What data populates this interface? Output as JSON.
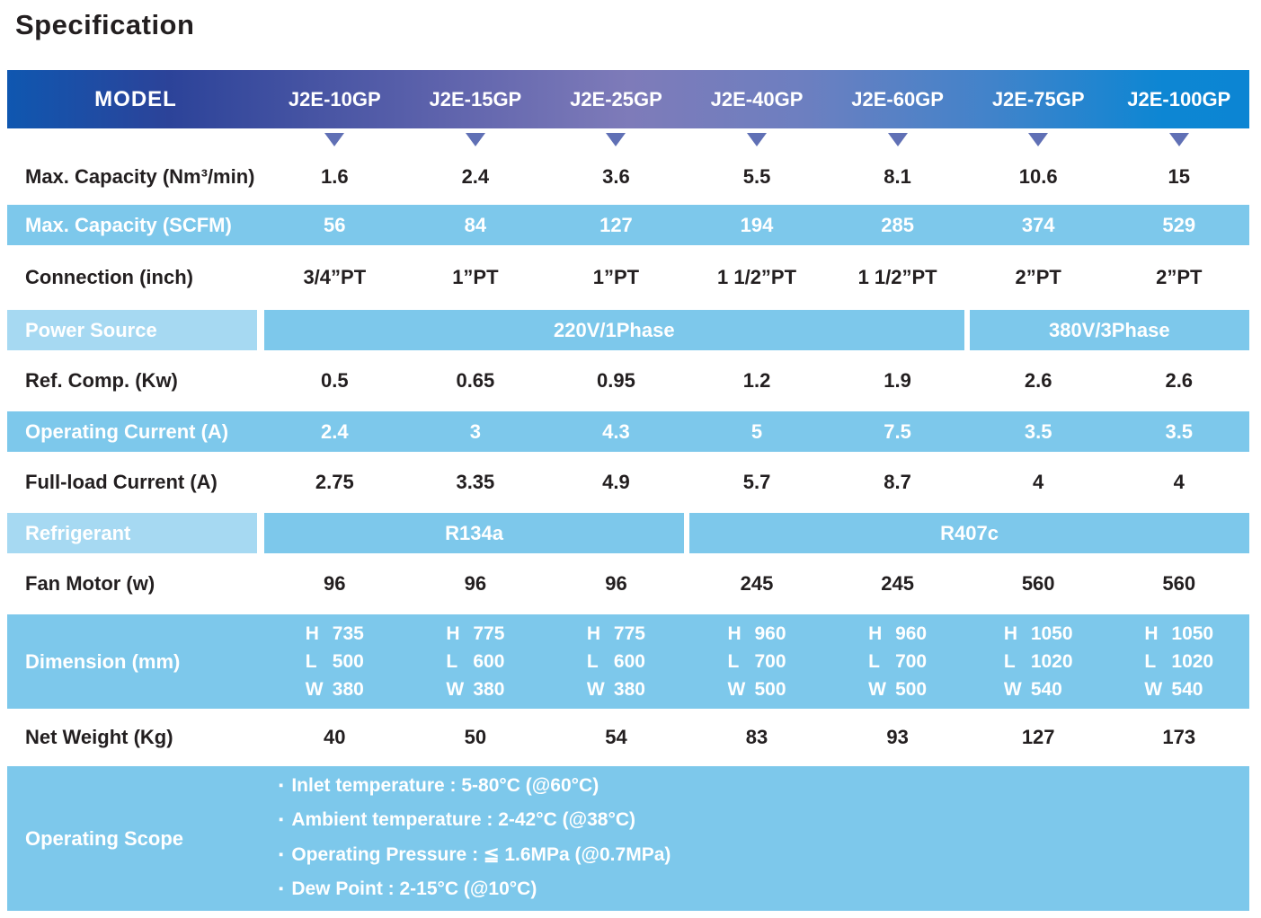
{
  "title": "Specification",
  "colors": {
    "header_gradient_left": "#0f57b0",
    "header_gradient_mid": "#7e7bb9",
    "header_gradient_right": "#0c85d3",
    "band_blue": "#7dc8eb",
    "label_light_blue": "#a6d9f2",
    "triangle_marker": "#6070b5",
    "text_dark": "#231f20",
    "text_white": "#ffffff"
  },
  "header": {
    "model_label": "MODEL",
    "models": [
      "J2E-10GP",
      "J2E-15GP",
      "J2E-25GP",
      "J2E-40GP",
      "J2E-60GP",
      "J2E-75GP",
      "J2E-100GP"
    ]
  },
  "rows": {
    "max_capacity_nm": {
      "label": "Max. Capacity (Nm³/min)",
      "values": [
        "1.6",
        "2.4",
        "3.6",
        "5.5",
        "8.1",
        "10.6",
        "15"
      ]
    },
    "max_capacity_scfm": {
      "label": "Max. Capacity (SCFM)",
      "values": [
        "56",
        "84",
        "127",
        "194",
        "285",
        "374",
        "529"
      ]
    },
    "connection": {
      "label": "Connection (inch)",
      "values": [
        "3/4”PT",
        "1”PT",
        "1”PT",
        "1 1/2”PT",
        "1 1/2”PT",
        "2”PT",
        "2”PT"
      ]
    },
    "power_source": {
      "label": "Power Source",
      "spans": [
        {
          "text": "220V/1Phase",
          "cols": 5
        },
        {
          "text": "380V/3Phase",
          "cols": 2
        }
      ]
    },
    "ref_comp": {
      "label": "Ref. Comp. (Kw)",
      "values": [
        "0.5",
        "0.65",
        "0.95",
        "1.2",
        "1.9",
        "2.6",
        "2.6"
      ]
    },
    "operating_current": {
      "label": "Operating Current (A)",
      "values": [
        "2.4",
        "3",
        "4.3",
        "5",
        "7.5",
        "3.5",
        "3.5"
      ]
    },
    "full_load_current": {
      "label": "Full-load Current (A)",
      "values": [
        "2.75",
        "3.35",
        "4.9",
        "5.7",
        "8.7",
        "4",
        "4"
      ]
    },
    "refrigerant": {
      "label": "Refrigerant",
      "spans": [
        {
          "text": "R134a",
          "cols": 3
        },
        {
          "text": "R407c",
          "cols": 4
        }
      ]
    },
    "fan_motor": {
      "label": "Fan Motor (w)",
      "values": [
        "96",
        "96",
        "96",
        "245",
        "245",
        "560",
        "560"
      ]
    },
    "dimension": {
      "label": "Dimension (mm)",
      "values": [
        [
          [
            "H",
            "735"
          ],
          [
            "L",
            "500"
          ],
          [
            "W",
            "380"
          ]
        ],
        [
          [
            "H",
            "775"
          ],
          [
            "L",
            "600"
          ],
          [
            "W",
            "380"
          ]
        ],
        [
          [
            "H",
            "775"
          ],
          [
            "L",
            "600"
          ],
          [
            "W",
            "380"
          ]
        ],
        [
          [
            "H",
            "960"
          ],
          [
            "L",
            "700"
          ],
          [
            "W",
            "500"
          ]
        ],
        [
          [
            "H",
            "960"
          ],
          [
            "L",
            "700"
          ],
          [
            "W",
            "500"
          ]
        ],
        [
          [
            "H",
            "1050"
          ],
          [
            "L",
            "1020"
          ],
          [
            "W",
            "540"
          ]
        ],
        [
          [
            "H",
            "1050"
          ],
          [
            "L",
            "1020"
          ],
          [
            "W",
            "540"
          ]
        ]
      ]
    },
    "net_weight": {
      "label": "Net Weight (Kg)",
      "values": [
        "40",
        "50",
        "54",
        "83",
        "93",
        "127",
        "173"
      ]
    },
    "operating_scope": {
      "label": "Operating Scope",
      "items": [
        "Inlet temperature : 5-80°C (@60°C)",
        "Ambient temperature : 2-42°C (@38°C)",
        "Operating Pressure : ≦ 1.6MPa (@0.7MPa)",
        "Dew Point : 2-15°C (@10°C)"
      ]
    }
  }
}
